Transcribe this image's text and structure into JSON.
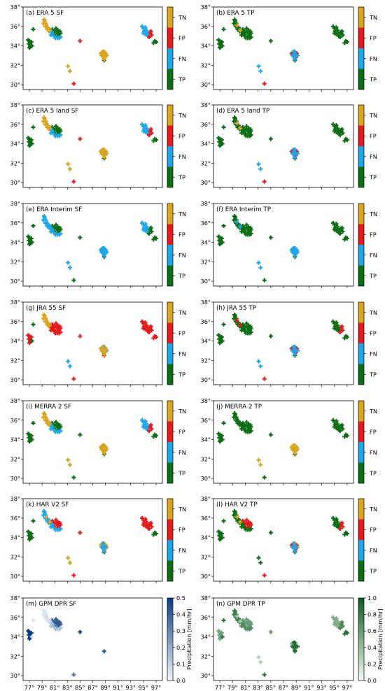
{
  "figure": {
    "colors": {
      "TN": "#daa520",
      "FP": "#e41a1c",
      "FN": "#1ea7e8",
      "TP": "#0b6e14",
      "blue_lo": "#f2f7fd",
      "blue_hi": "#0a3c82",
      "green_lo": "#f4fbf1",
      "green_hi": "#0d5b1f"
    },
    "xticks": [
      "77°",
      "79°",
      "81°",
      "83°",
      "85°",
      "87°",
      "89°",
      "91°",
      "93°",
      "95°",
      "97°"
    ],
    "yticks": [
      "38°",
      "36°",
      "34°",
      "32°",
      "30°"
    ],
    "cat_labels": [
      "TN",
      "FP",
      "FN",
      "TP"
    ],
    "blues_label": "Precipitation [mm/hr]",
    "blues_ticks": [
      "0.5",
      "0.4",
      "0.3",
      "0.2",
      "0.1",
      "0.0"
    ],
    "greens_label": "Precipitation [mm/hr]",
    "greens_ticks": [
      "1.0",
      "0.8",
      "0.6",
      "0.4",
      "0.2",
      "0.0"
    ]
  },
  "chart_data": [
    {
      "type": "scatter",
      "title": "(a) ERA 5 SF",
      "xlim": [
        76,
        98
      ],
      "ylim": [
        29.5,
        38
      ],
      "legend": "colorbar-right",
      "categories": [
        "TN",
        "FP",
        "FN",
        "TP"
      ],
      "region_states": {
        "A": "TN",
        "B": "TP",
        "C": "TP",
        "D": "FN",
        "E": "TP",
        "F": "FP",
        "G": "FP",
        "H": "TN",
        "I": "TN",
        "J": "TP",
        "K": "FN",
        "L": "FP",
        "M": "TP",
        "N": "TN",
        "O": "TN",
        "P": "TN"
      }
    },
    {
      "type": "scatter",
      "title": "(b) ERA 5 TP",
      "xlim": [
        76,
        98
      ],
      "ylim": [
        29.5,
        38
      ],
      "legend": "colorbar-right",
      "categories": [
        "TN",
        "FP",
        "FN",
        "TP"
      ],
      "region_states": {
        "A": "TP",
        "B": "TP",
        "C": "TP",
        "D": "TP",
        "E": "TP",
        "F": "TP",
        "G": "FP",
        "H": "FN",
        "I": "FN",
        "J": "TP",
        "K": "TP",
        "L": "TP",
        "M": "TP",
        "N": "FP",
        "O": "FN",
        "P": "TN"
      }
    },
    {
      "type": "scatter",
      "title": "(c) ERA 5 land SF",
      "xlim": [
        76,
        98
      ],
      "ylim": [
        29.5,
        38
      ],
      "legend": "colorbar-right",
      "categories": [
        "TN",
        "FP",
        "FN",
        "TP"
      ],
      "region_states": {
        "A": "TN",
        "B": "TP",
        "C": "TP",
        "D": "FN",
        "E": "TP",
        "F": "FP",
        "G": "FP",
        "H": "TN",
        "I": "TN",
        "J": "TP",
        "K": "FN",
        "L": "FP",
        "M": "TP",
        "N": "TN",
        "O": "TN",
        "P": "TN"
      }
    },
    {
      "type": "scatter",
      "title": "(d) ERA 5 land TP",
      "xlim": [
        76,
        98
      ],
      "ylim": [
        29.5,
        38
      ],
      "legend": "colorbar-right",
      "categories": [
        "TN",
        "FP",
        "FN",
        "TP"
      ],
      "region_states": {
        "A": "TP",
        "B": "TP",
        "C": "TP",
        "D": "TP",
        "E": "TP",
        "F": "TP",
        "G": "FP",
        "H": "FN",
        "I": "FN",
        "J": "TP",
        "K": "TP",
        "L": "TP",
        "M": "TP",
        "N": "FP",
        "O": "FN",
        "P": "TN"
      }
    },
    {
      "type": "scatter",
      "title": "(e) ERA Interim SF",
      "xlim": [
        76,
        98
      ],
      "ylim": [
        29.5,
        38
      ],
      "legend": "colorbar-right",
      "categories": [
        "TN",
        "FP",
        "FN",
        "TP"
      ],
      "region_states": {
        "A": "FN",
        "B": "TP",
        "C": "TP",
        "D": "FN",
        "E": "TP",
        "F": "TP",
        "G": "TP",
        "H": "FN",
        "I": "FN",
        "J": "TP",
        "K": "FN",
        "L": "TP",
        "M": "TP",
        "N": "FN",
        "O": "FN",
        "P": "FN"
      }
    },
    {
      "type": "scatter",
      "title": "(f) ERA Interim TP",
      "xlim": [
        76,
        98
      ],
      "ylim": [
        29.5,
        38
      ],
      "legend": "colorbar-right",
      "categories": [
        "TN",
        "FP",
        "FN",
        "TP"
      ],
      "region_states": {
        "A": "TP",
        "B": "TP",
        "C": "TP",
        "D": "TP",
        "E": "TP",
        "F": "TP",
        "G": "TP",
        "H": "FN",
        "I": "FN",
        "J": "TP",
        "K": "TP",
        "L": "TP",
        "M": "TP",
        "N": "FN",
        "O": "FN",
        "P": "FN"
      }
    },
    {
      "type": "scatter",
      "title": "(g) JRA 55 SF",
      "xlim": [
        76,
        98
      ],
      "ylim": [
        29.5,
        38
      ],
      "legend": "colorbar-right",
      "categories": [
        "TN",
        "FP",
        "FN",
        "TP"
      ],
      "region_states": {
        "A": "TN",
        "B": "FP",
        "C": "FP",
        "D": "FP",
        "E": "TP",
        "F": "FP",
        "G": "FP",
        "H": "FN",
        "I": "FN",
        "J": "FP",
        "K": "FP",
        "L": "FP",
        "M": "FP",
        "N": "TN",
        "O": "TN",
        "P": "TN"
      }
    },
    {
      "type": "scatter",
      "title": "(h) JRA 55 TP",
      "xlim": [
        76,
        98
      ],
      "ylim": [
        29.5,
        38
      ],
      "legend": "colorbar-right",
      "categories": [
        "TN",
        "FP",
        "FN",
        "TP"
      ],
      "region_states": {
        "A": "TP",
        "B": "TP",
        "C": "TP",
        "D": "TP",
        "E": "TP",
        "F": "TP",
        "G": "FP",
        "H": "FN",
        "I": "FN",
        "J": "TP",
        "K": "TP",
        "L": "FP",
        "M": "TP",
        "N": "FP",
        "O": "FN",
        "P": "FP"
      }
    },
    {
      "type": "scatter",
      "title": "(i) MERRA 2 SF",
      "xlim": [
        76,
        98
      ],
      "ylim": [
        29.5,
        38
      ],
      "legend": "colorbar-right",
      "categories": [
        "TN",
        "FP",
        "FN",
        "TP"
      ],
      "region_states": {
        "A": "TN",
        "B": "TP",
        "C": "TP",
        "D": "FN",
        "E": "TP",
        "F": "TP",
        "G": "TP",
        "H": "TN",
        "I": "TN",
        "J": "TP",
        "K": "FN",
        "L": "FP",
        "M": "TP",
        "N": "TN",
        "O": "TN",
        "P": "TN"
      }
    },
    {
      "type": "scatter",
      "title": "(j) MERRA 2 TP",
      "xlim": [
        76,
        98
      ],
      "ylim": [
        29.5,
        38
      ],
      "legend": "colorbar-right",
      "categories": [
        "TN",
        "FP",
        "FN",
        "TP"
      ],
      "region_states": {
        "A": "TP",
        "B": "TP",
        "C": "TP",
        "D": "TP",
        "E": "TP",
        "F": "TP",
        "G": "TP",
        "H": "TN",
        "I": "TN",
        "J": "TP",
        "K": "TP",
        "L": "TP",
        "M": "TP",
        "N": "TN",
        "O": "TN",
        "P": "TP"
      }
    },
    {
      "type": "scatter",
      "title": "(k) HAR V2 SF",
      "xlim": [
        76,
        98
      ],
      "ylim": [
        29.5,
        38
      ],
      "legend": "colorbar-right",
      "categories": [
        "TN",
        "FP",
        "FN",
        "TP"
      ],
      "region_states": {
        "A": "FN",
        "B": "TP",
        "C": "FP",
        "D": "FN",
        "E": "TP",
        "F": "FP",
        "G": "FP",
        "H": "TN",
        "I": "TN",
        "J": "TP",
        "K": "FP",
        "L": "FP",
        "M": "TP",
        "N": "TN",
        "O": "FN",
        "P": "TN"
      }
    },
    {
      "type": "scatter",
      "title": "(l) HAR V2 TP",
      "xlim": [
        76,
        98
      ],
      "ylim": [
        29.5,
        38
      ],
      "legend": "colorbar-right",
      "categories": [
        "TN",
        "FP",
        "FN",
        "TP"
      ],
      "region_states": {
        "A": "TP",
        "B": "TP",
        "C": "FP",
        "D": "TP",
        "E": "TP",
        "F": "TP",
        "G": "FP",
        "H": "TP",
        "I": "TN",
        "J": "TP",
        "K": "TP",
        "L": "FP",
        "M": "TP",
        "N": "FP",
        "O": "FN",
        "P": "TN"
      }
    },
    {
      "type": "scatter",
      "title": "(m) GPM DPR SF",
      "xlim": [
        76,
        98
      ],
      "ylim": [
        29.5,
        38
      ],
      "legend": "colorbar-right",
      "colorscale": "blues",
      "clim": [
        0,
        0.5
      ],
      "region_values": {
        "A": 0.05,
        "B": 0.5,
        "C": 0.42,
        "D": 0.15,
        "E": 0.05,
        "F": 0.5,
        "G": 0.35,
        "J": 0.45,
        "P": 0.08
      }
    },
    {
      "type": "scatter",
      "title": "(n) GPM DPR TP",
      "xlim": [
        76,
        98
      ],
      "ylim": [
        29.5,
        38
      ],
      "legend": "colorbar-right",
      "colorscale": "greens",
      "clim": [
        0,
        1
      ],
      "region_values": {
        "A": 0.8,
        "B": 0.55,
        "C": 0.6,
        "D": 0.7,
        "E": 0.85,
        "F": 0.6,
        "G": 0.85,
        "H": 0.3,
        "I": 0.95,
        "J": 0.95,
        "K": 0.5,
        "L": 0.75,
        "M": 0.85,
        "N": 0.3,
        "O": 0.9,
        "P": 0.35
      }
    }
  ]
}
